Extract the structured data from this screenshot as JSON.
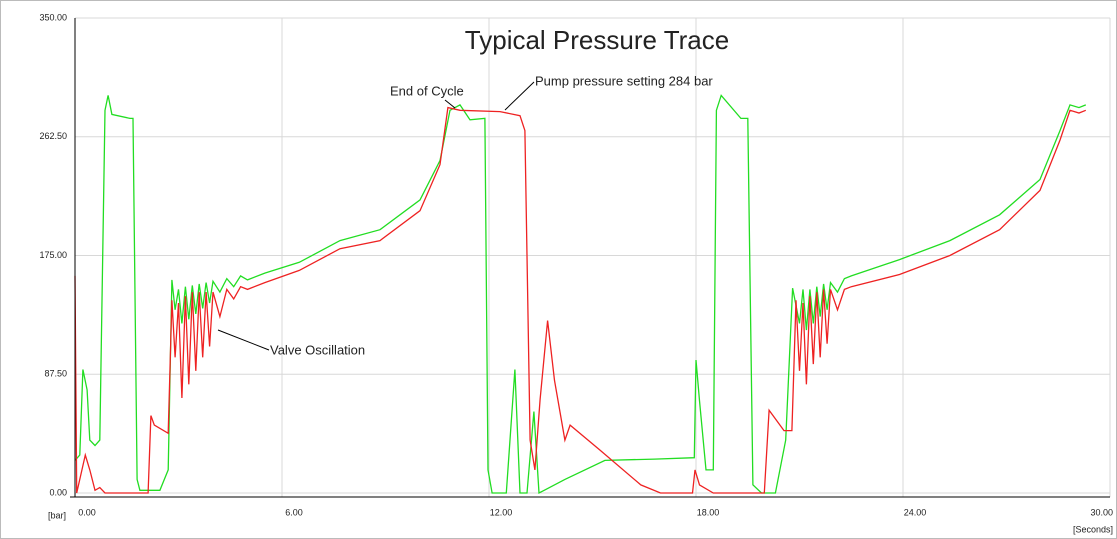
{
  "chart_data": {
    "type": "line",
    "title": "Typical Pressure Trace",
    "y_label": "[bar]",
    "x_label": "[Seconds]",
    "xlim": [
      0,
      30
    ],
    "ylim": [
      0,
      350
    ],
    "xticks": [
      {
        "value": 0,
        "label": "0.00"
      },
      {
        "value": 6,
        "label": "6.00"
      },
      {
        "value": 12,
        "label": "12.00"
      },
      {
        "value": 18,
        "label": "18.00"
      },
      {
        "value": 24,
        "label": "24.00"
      },
      {
        "value": 30,
        "label": "30.00"
      }
    ],
    "yticks": [
      {
        "value": 0,
        "label": "0.00"
      },
      {
        "value": 87.5,
        "label": "87.50"
      },
      {
        "value": 175,
        "label": "175.00"
      },
      {
        "value": 262.5,
        "label": "262.50"
      },
      {
        "value": 350,
        "label": "350.00"
      }
    ],
    "grid": true,
    "annotations": [
      "End of Cycle",
      "Pump pressure setting 284 bar",
      "Valve Oscillation"
    ],
    "series": [
      {
        "color": "#22dd22",
        "x": [
          0,
          0.14,
          0.23,
          0.35,
          0.43,
          0.58,
          0.72,
          0.87,
          0.96,
          1.07,
          1.59,
          1.68,
          1.8,
          1.88,
          2.46,
          2.7,
          2.81,
          2.9,
          3.0,
          3.1,
          3.2,
          3.3,
          3.4,
          3.5,
          3.6,
          3.7,
          3.8,
          3.9,
          4.0,
          4.2,
          4.4,
          4.6,
          4.8,
          5.0,
          5.5,
          6.5,
          7.68,
          8.84,
          10.0,
          10.58,
          10.87,
          11.16,
          11.45,
          11.88,
          11.97,
          12.09,
          12.5,
          12.75,
          12.9,
          13.1,
          13.3,
          13.45,
          13.6,
          14.2,
          15.36,
          16.8,
          17.95,
          18.0,
          18.1,
          18.29,
          18.5,
          18.59,
          18.73,
          19.3,
          19.5,
          19.65,
          19.9,
          20.3,
          20.6,
          20.8,
          21.0,
          21.1,
          21.2,
          21.3,
          21.4,
          21.5,
          21.6,
          21.7,
          21.8,
          21.9,
          22.1,
          22.3,
          22.5,
          23.9,
          25.36,
          26.8,
          27.97,
          28.55,
          28.84,
          29.1,
          29.3
        ],
        "values": [
          24,
          28,
          91,
          76,
          39,
          35,
          39,
          282,
          293,
          279,
          276,
          276,
          10,
          2,
          2,
          17,
          157,
          135,
          150,
          125,
          152,
          128,
          153,
          132,
          154,
          136,
          155,
          140,
          156,
          148,
          158,
          152,
          160,
          157,
          162,
          170,
          186,
          194,
          216,
          245,
          282,
          286,
          275,
          276,
          17,
          0,
          0,
          91,
          0,
          0,
          60,
          0,
          2,
          10,
          24,
          25,
          26,
          98,
          68,
          17,
          17,
          282,
          293,
          276,
          276,
          6,
          0,
          0,
          39,
          151,
          125,
          150,
          120,
          150,
          125,
          152,
          130,
          154,
          135,
          155,
          148,
          158,
          160,
          172,
          186,
          205,
          231,
          267,
          286,
          284,
          286
        ]
      },
      {
        "color": "#ee2222",
        "x": [
          0,
          0.05,
          0.3,
          0.43,
          0.58,
          0.72,
          0.87,
          2.12,
          2.2,
          2.3,
          2.7,
          2.81,
          2.9,
          3.0,
          3.1,
          3.2,
          3.3,
          3.4,
          3.5,
          3.6,
          3.7,
          3.8,
          3.9,
          4.0,
          4.2,
          4.4,
          4.6,
          4.8,
          5.0,
          5.5,
          6.5,
          7.68,
          8.84,
          10.0,
          10.58,
          10.81,
          11.16,
          12.32,
          12.9,
          13.04,
          13.19,
          13.33,
          13.48,
          13.7,
          13.9,
          14.2,
          14.35,
          15.2,
          16.4,
          16.97,
          17.9,
          17.97,
          18.1,
          18.5,
          19.98,
          20.12,
          20.55,
          20.78,
          20.9,
          21.0,
          21.1,
          21.2,
          21.3,
          21.4,
          21.5,
          21.6,
          21.7,
          21.8,
          21.9,
          22.1,
          22.3,
          22.5,
          23.9,
          25.36,
          26.8,
          27.97,
          28.55,
          28.84,
          29.1,
          29.3
        ],
        "values": [
          160,
          0,
          28,
          17,
          2,
          4,
          0,
          0,
          57,
          50,
          44,
          142,
          100,
          140,
          70,
          145,
          80,
          148,
          90,
          148,
          100,
          148,
          108,
          148,
          130,
          150,
          143,
          152,
          150,
          155,
          164,
          180,
          186,
          208,
          242,
          284,
          282,
          281,
          278,
          267,
          39,
          17,
          69,
          127,
          83,
          39,
          50,
          32,
          6,
          0,
          0,
          17,
          6,
          0,
          0,
          61,
          46,
          46,
          142,
          90,
          140,
          80,
          145,
          95,
          148,
          100,
          150,
          110,
          150,
          135,
          150,
          152,
          161,
          175,
          194,
          223,
          260,
          282,
          280,
          282
        ]
      }
    ]
  }
}
